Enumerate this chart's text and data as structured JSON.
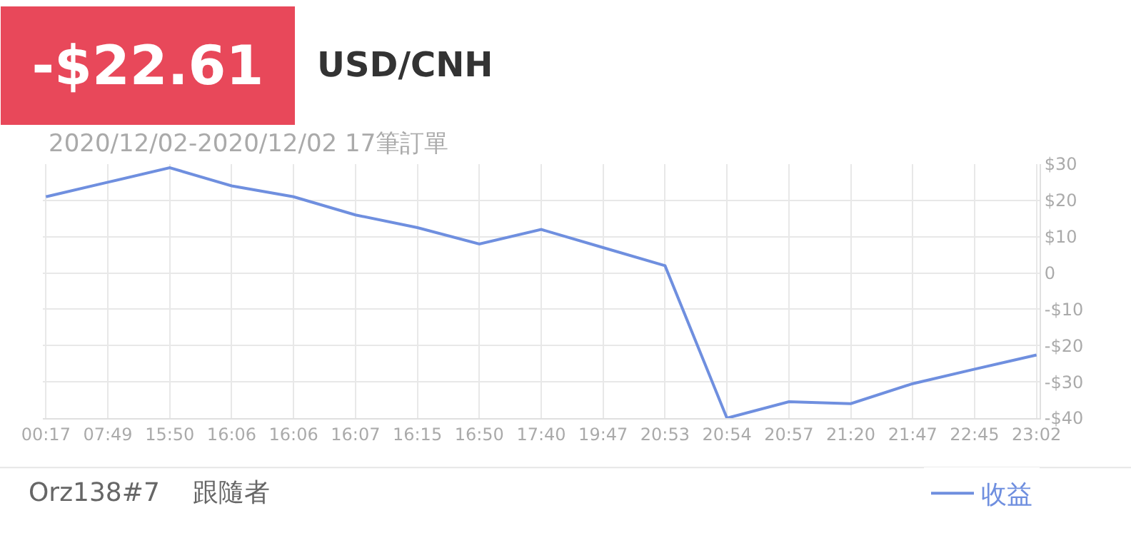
{
  "chart_data": {
    "type": "line",
    "title": "USD/CNH",
    "subtitle": "2020/12/02-2020/12/02 17筆訂單",
    "annotations": [
      "-$22.61",
      "Orz138#7    跟隨者"
    ],
    "categories": [
      "00:17",
      "07:49",
      "15:50",
      "16:06",
      "16:06",
      "16:07",
      "16:15",
      "16:50",
      "17:40",
      "19:47",
      "20:53",
      "20:54",
      "20:57",
      "21:20",
      "21:47",
      "22:45",
      "23:02"
    ],
    "series": [
      {
        "name": "收益",
        "color": "#6f8fdf",
        "values": [
          21,
          25,
          29,
          24,
          21,
          16,
          12.5,
          8,
          12,
          7,
          2,
          -40,
          -35.5,
          -36,
          -30.5,
          -26.5,
          -22.61
        ]
      }
    ],
    "ylim": [
      -40,
      30
    ],
    "yticks": [
      {
        "value": 30,
        "label": "$30"
      },
      {
        "value": 20,
        "label": "$20"
      },
      {
        "value": 10,
        "label": "$10"
      },
      0,
      {
        "value": -10,
        "label": "-$10"
      },
      {
        "value": -20,
        "label": "-$20"
      },
      {
        "value": -30,
        "label": "-$30"
      },
      {
        "value": -40,
        "label": "-$40"
      }
    ],
    "grid": true,
    "legend": "bottom right",
    "marker": "none",
    "line_style": "solid"
  }
}
